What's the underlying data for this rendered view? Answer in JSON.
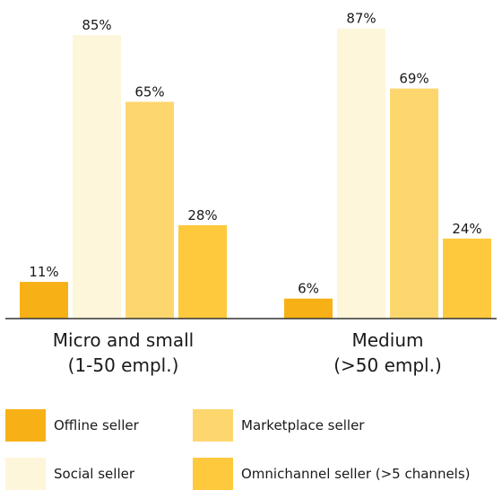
{
  "chart_data": {
    "type": "bar",
    "categories": [
      "Micro and small",
      "Medium"
    ],
    "category_sublabels": [
      "(1-50 empl.)",
      "(>50 empl.)"
    ],
    "series": [
      {
        "name": "Offline seller",
        "values": [
          11,
          6
        ],
        "labels": [
          "11%",
          "6%"
        ],
        "color": "#F7B116"
      },
      {
        "name": "Social seller",
        "values": [
          85,
          87
        ],
        "labels": [
          "85%",
          "87%"
        ],
        "color": "#FEF6DA"
      },
      {
        "name": "Marketplace seller",
        "values": [
          65,
          69
        ],
        "labels": [
          "65%",
          "69%"
        ],
        "color": "#FED66E"
      },
      {
        "name": "Omnichannel seller (>5 channels)",
        "values": [
          28,
          24
        ],
        "labels": [
          "28%",
          "24%"
        ],
        "color": "#FEC93D"
      }
    ],
    "ylim": [
      0,
      88
    ],
    "grid": false,
    "legend_position": "bottom"
  }
}
